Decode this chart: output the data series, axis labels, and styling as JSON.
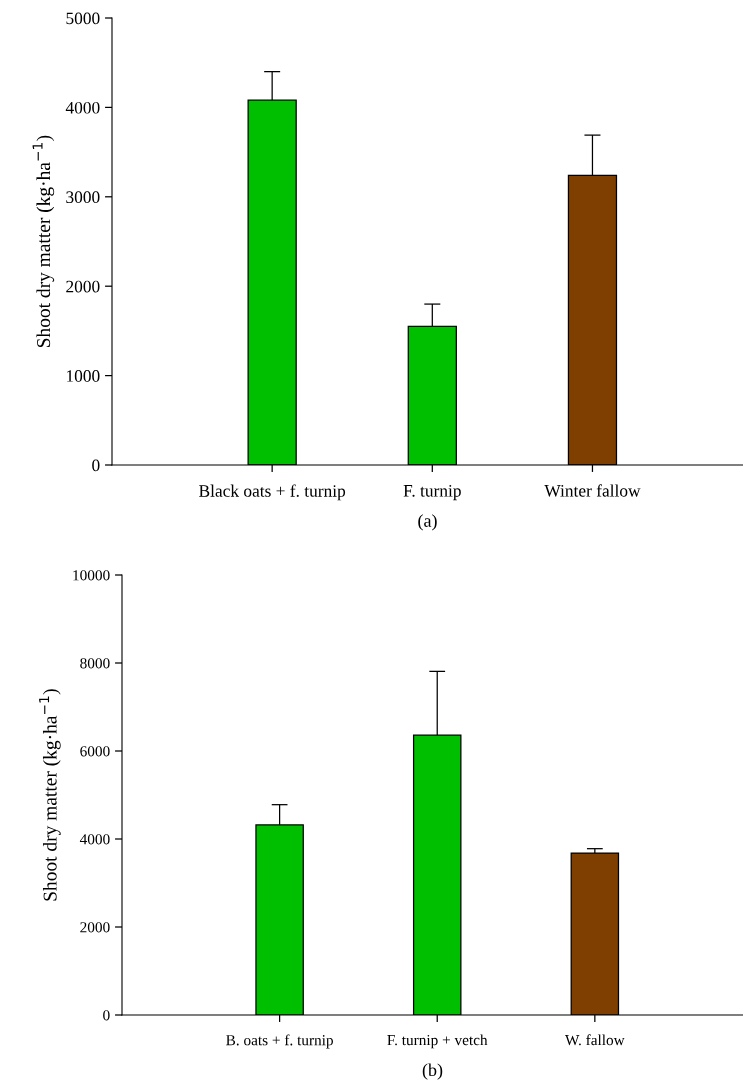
{
  "chart_data": [
    {
      "type": "bar",
      "ylabel": "Shoot dry matter (kg·ha$^{−1}$)",
      "categories": [
        "Black oats + f. turnip",
        "F. turnip",
        "Winter fallow"
      ],
      "values": [
        4080,
        1550,
        3240
      ],
      "colors": [
        "#00bf00",
        "#00bf00",
        "#7f3f00"
      ],
      "errors": [
        [
          4080,
          4400
        ],
        [
          1550,
          1800
        ],
        [
          3240,
          3690
        ]
      ],
      "ylim": [
        0,
        5000
      ],
      "yticks": [
        0,
        1000,
        2000,
        3000,
        4000,
        5000
      ],
      "grid": false,
      "annotations": [
        "(a)"
      ]
    },
    {
      "type": "bar",
      "ylabel": "Shoot dry matter (kg·ha$^{−1}$)",
      "categories": [
        "B. oats + f. turnip",
        "F. turnip + vetch",
        "W. fallow"
      ],
      "values": [
        4320,
        6360,
        3680
      ],
      "colors": [
        "#00bf00",
        "#00bf00",
        "#7f3f00"
      ],
      "errors": [
        [
          4320,
          4780
        ],
        [
          6360,
          7810
        ],
        [
          3680,
          3780
        ]
      ],
      "ylim": [
        0,
        10000
      ],
      "yticks": [
        0,
        2000,
        4000,
        6000,
        8000,
        10000
      ],
      "grid": false,
      "annotations": [
        "(b)"
      ]
    }
  ]
}
